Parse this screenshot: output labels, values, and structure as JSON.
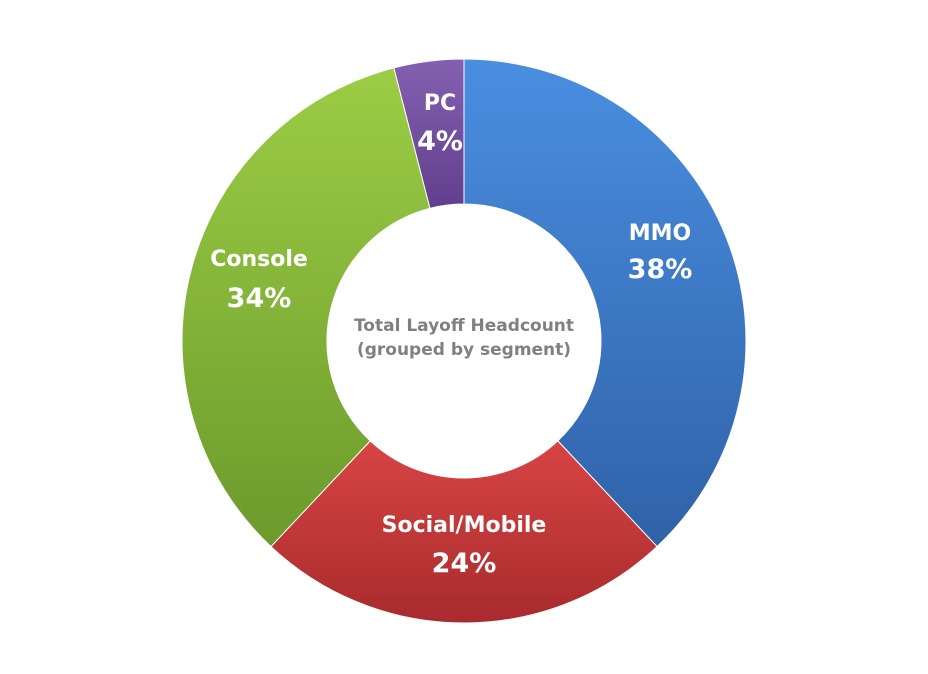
{
  "chart_data": {
    "type": "pie",
    "title": "Total Layoff Headcount",
    "subtitle": "(grouped by segment)",
    "slices": [
      {
        "name": "MMO",
        "value": 38,
        "label": "38%",
        "color": "#3d7fd1"
      },
      {
        "name": "Social/Mobile",
        "value": 24,
        "label": "24%",
        "color": "#c8393a"
      },
      {
        "name": "Console",
        "value": 34,
        "label": "34%",
        "color": "#8fbe3a"
      },
      {
        "name": "PC",
        "value": 4,
        "label": "4%",
        "color": "#7650a2"
      }
    ]
  }
}
